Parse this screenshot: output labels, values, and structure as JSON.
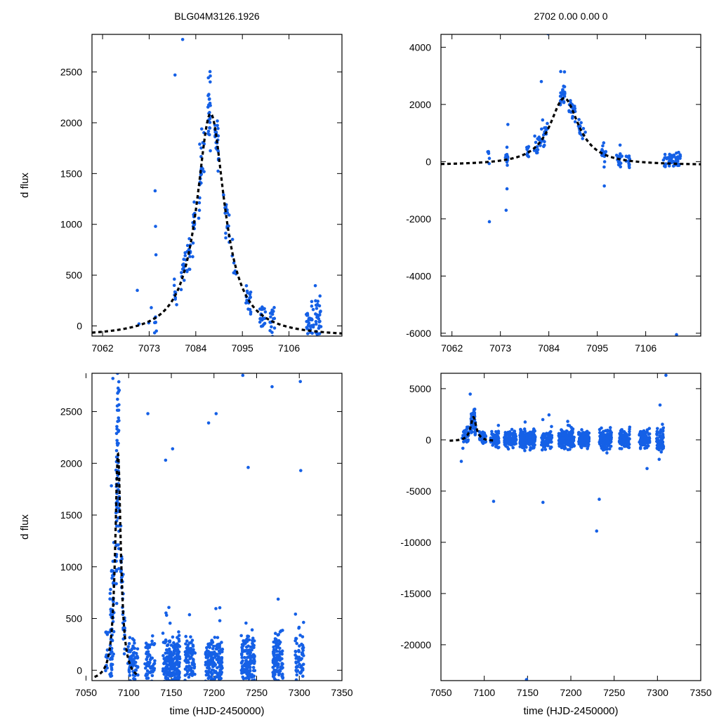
{
  "chart_data": [
    {
      "id": "p1",
      "type": "scatter",
      "title": "BLG04M3126.1926",
      "xlabel": "",
      "ylabel": "d flux",
      "xlim": [
        7059.5,
        7118.5
      ],
      "ylim": [
        -100,
        2870
      ],
      "xticks": [
        7062,
        7073,
        7084,
        7095,
        7106
      ],
      "yticks": [
        0,
        500,
        1000,
        1500,
        2000,
        2500
      ],
      "point_color": "#1560e6",
      "model_color": "#000000",
      "model": {
        "t0": 7087.5,
        "tE": 4.0,
        "amp": 2200,
        "base": -110
      },
      "series": [
        {
          "name": "observations",
          "seeds": [
            {
              "x": 7070.2,
              "y": 350
            },
            {
              "x": 7070.6,
              "y": 20
            },
            {
              "x": 7072.9,
              "y": 30
            },
            {
              "x": 7073.5,
              "y": 180
            },
            {
              "x": 7074.4,
              "y": 1330
            },
            {
              "x": 7074.5,
              "y": 980
            },
            {
              "x": 7074.6,
              "y": 700
            },
            {
              "x": 7074.7,
              "y": -50
            },
            {
              "x": 7079.1,
              "y": 2470
            },
            {
              "x": 7080.9,
              "y": 2820
            },
            {
              "x": 7084.7,
              "y": 1060
            }
          ],
          "clusters": [
            {
              "xc": 7074.4,
              "dx": 0.3,
              "n": 6,
              "jit": 140
            },
            {
              "xc": 7079.2,
              "dx": 0.3,
              "n": 8,
              "jit": 110
            },
            {
              "xc": 7081.3,
              "dx": 0.8,
              "n": 20,
              "jit": 150
            },
            {
              "xc": 7083.0,
              "dx": 0.8,
              "n": 22,
              "jit": 190
            },
            {
              "xc": 7085.4,
              "dx": 0.6,
              "n": 24,
              "jit": 230
            },
            {
              "xc": 7087.2,
              "dx": 0.4,
              "n": 26,
              "jit": 250
            },
            {
              "xc": 7089.0,
              "dx": 0.5,
              "n": 24,
              "jit": 210
            },
            {
              "xc": 7091.2,
              "dx": 0.7,
              "n": 16,
              "jit": 170
            },
            {
              "xc": 7093.0,
              "dx": 0.5,
              "n": 6,
              "jit": 140
            },
            {
              "xc": 7096.4,
              "dx": 0.6,
              "n": 18,
              "jit": 110
            },
            {
              "xc": 7099.8,
              "dx": 0.7,
              "n": 22,
              "jit": 120
            },
            {
              "xc": 7102.0,
              "dx": 0.6,
              "n": 18,
              "jit": 130
            },
            {
              "xc": 7111.0,
              "dx": 0.9,
              "n": 30,
              "jit": 160
            },
            {
              "xc": 7113.0,
              "dx": 0.8,
              "n": 34,
              "jit": 170
            }
          ]
        }
      ]
    },
    {
      "id": "p2",
      "type": "scatter",
      "title": "2702  0.00  0.00  0",
      "xlabel": "",
      "ylabel": "",
      "xlim": [
        7059.5,
        7118.5
      ],
      "ylim": [
        -6100,
        4450
      ],
      "xticks": [
        7062,
        7073,
        7084,
        7095,
        7106
      ],
      "yticks": [
        4000,
        2000,
        0,
        -2000,
        -4000,
        -6000
      ],
      "point_color": "#1560e6",
      "model_color": "#000000",
      "model": {
        "t0": 7087.5,
        "tE": 4.0,
        "amp": 2350,
        "base": -130
      },
      "series": [
        {
          "name": "observations",
          "seeds": [
            {
              "x": 7070.3,
              "y": 350
            },
            {
              "x": 7070.5,
              "y": -2100
            },
            {
              "x": 7074.3,
              "y": -1700
            },
            {
              "x": 7074.5,
              "y": -950
            },
            {
              "x": 7074.7,
              "y": 1300
            },
            {
              "x": 7082.3,
              "y": 2800
            },
            {
              "x": 7083.8,
              "y": 4470
            },
            {
              "x": 7086.7,
              "y": 3150
            },
            {
              "x": 7096.6,
              "y": -850
            },
            {
              "x": 7113.0,
              "y": -6050
            }
          ],
          "clusters": [
            {
              "xc": 7070.3,
              "dx": 0.3,
              "n": 4,
              "jit": 250
            },
            {
              "xc": 7074.5,
              "dx": 0.4,
              "n": 10,
              "jit": 350
            },
            {
              "xc": 7079.3,
              "dx": 0.4,
              "n": 10,
              "jit": 220
            },
            {
              "xc": 7081.4,
              "dx": 0.8,
              "n": 18,
              "jit": 260
            },
            {
              "xc": 7083.0,
              "dx": 0.7,
              "n": 18,
              "jit": 300
            },
            {
              "xc": 7087.2,
              "dx": 0.6,
              "n": 24,
              "jit": 330
            },
            {
              "xc": 7089.3,
              "dx": 0.7,
              "n": 20,
              "jit": 300
            },
            {
              "xc": 7091.5,
              "dx": 0.8,
              "n": 14,
              "jit": 260
            },
            {
              "xc": 7096.5,
              "dx": 0.5,
              "n": 18,
              "jit": 260
            },
            {
              "xc": 7100.0,
              "dx": 0.6,
              "n": 16,
              "jit": 220
            },
            {
              "xc": 7102.0,
              "dx": 0.5,
              "n": 14,
              "jit": 220
            },
            {
              "xc": 7111.0,
              "dx": 1.0,
              "n": 28,
              "jit": 200
            },
            {
              "xc": 7113.0,
              "dx": 0.9,
              "n": 30,
              "jit": 210
            }
          ]
        }
      ]
    },
    {
      "id": "p3",
      "type": "scatter",
      "title": "",
      "xlabel": "time (HJD-2450000)",
      "ylabel": "d flux",
      "xlim": [
        7057,
        7350
      ],
      "ylim": [
        -100,
        2870
      ],
      "xticks": [
        7050,
        7100,
        7150,
        7200,
        7250,
        7300,
        7350
      ],
      "yticks": [
        0,
        500,
        1000,
        1500,
        2000,
        2500
      ],
      "point_color": "#1560e6",
      "model_color": "#000000",
      "model": {
        "t0": 7087.5,
        "tE": 4.0,
        "amp": 2200,
        "base": -110
      },
      "series": [
        {
          "name": "observations",
          "seeds": [
            {
              "x": 7081.5,
              "y": 2820
            },
            {
              "x": 7122.5,
              "y": 2480
            },
            {
              "x": 7202.5,
              "y": 2480
            },
            {
              "x": 7233.8,
              "y": 2850
            },
            {
              "x": 7268.1,
              "y": 2740
            },
            {
              "x": 7301.2,
              "y": 2790
            },
            {
              "x": 7151.5,
              "y": 2140
            },
            {
              "x": 7143.3,
              "y": 2030
            },
            {
              "x": 7240.1,
              "y": 1960
            },
            {
              "x": 7301.7,
              "y": 1930
            },
            {
              "x": 7193.7,
              "y": 2390
            }
          ],
          "clusters": [
            {
              "xc": 7074.2,
              "dx": 1.5,
              "n": 12,
              "jit": 200
            },
            {
              "xc": 7080.5,
              "dx": 2.5,
              "n": 60,
              "jit": 500
            },
            {
              "xc": 7087.0,
              "dx": 2.0,
              "n": 80,
              "jit": 800
            },
            {
              "xc": 7093.0,
              "dx": 2.5,
              "n": 35,
              "jit": 300
            },
            {
              "xc": 7105.0,
              "dx": 6.0,
              "n": 70,
              "jit": 150
            },
            {
              "xc": 7125.0,
              "dx": 6.0,
              "n": 60,
              "jit": 170
            },
            {
              "xc": 7150.0,
              "dx": 10.0,
              "n": 210,
              "jit": 230
            },
            {
              "xc": 7172.0,
              "dx": 6.0,
              "n": 90,
              "jit": 180
            },
            {
              "xc": 7200.0,
              "dx": 10.0,
              "n": 190,
              "jit": 240
            },
            {
              "xc": 7240.0,
              "dx": 8.0,
              "n": 150,
              "jit": 230
            },
            {
              "xc": 7275.0,
              "dx": 6.0,
              "n": 110,
              "jit": 200
            },
            {
              "xc": 7300.0,
              "dx": 5.0,
              "n": 60,
              "jit": 220
            }
          ]
        }
      ]
    },
    {
      "id": "p4",
      "type": "scatter",
      "title": "",
      "xlabel": "time (HJD-2450000)",
      "ylabel": "",
      "xlim": [
        7050,
        7350
      ],
      "ylim": [
        -23500,
        6500
      ],
      "xticks": [
        7050,
        7100,
        7150,
        7200,
        7250,
        7300,
        7350
      ],
      "yticks": [
        5000,
        0,
        -5000,
        -10000,
        -15000,
        -20000
      ],
      "point_color": "#1560e6",
      "model_color": "#000000",
      "model": {
        "t0": 7087.5,
        "tE": 4.0,
        "amp": 2350,
        "base": -130
      },
      "series": [
        {
          "name": "observations",
          "seeds": [
            {
              "x": 7110.8,
              "y": -6000
            },
            {
              "x": 7167.8,
              "y": -6100
            },
            {
              "x": 7232.8,
              "y": -5800
            },
            {
              "x": 7229.8,
              "y": -8900
            },
            {
              "x": 7148.8,
              "y": -23400
            },
            {
              "x": 7309.8,
              "y": 6300
            },
            {
              "x": 7083.8,
              "y": 4470
            },
            {
              "x": 7073.5,
              "y": -2100
            },
            {
              "x": 7302.0,
              "y": -1900
            },
            {
              "x": 7288.0,
              "y": -2800
            },
            {
              "x": 7303.0,
              "y": 3400
            }
          ],
          "clusters": [
            {
              "xc": 7078.0,
              "dx": 4.0,
              "n": 40,
              "jit": 700
            },
            {
              "xc": 7087.0,
              "dx": 3.0,
              "n": 60,
              "jit": 900
            },
            {
              "xc": 7098.0,
              "dx": 4.0,
              "n": 40,
              "jit": 500
            },
            {
              "xc": 7112.0,
              "dx": 5.0,
              "n": 70,
              "jit": 650
            },
            {
              "xc": 7130.0,
              "dx": 7.0,
              "n": 100,
              "jit": 700
            },
            {
              "xc": 7150.0,
              "dx": 9.0,
              "n": 200,
              "jit": 700
            },
            {
              "xc": 7172.0,
              "dx": 6.0,
              "n": 90,
              "jit": 700
            },
            {
              "xc": 7195.0,
              "dx": 9.0,
              "n": 180,
              "jit": 750
            },
            {
              "xc": 7215.0,
              "dx": 6.0,
              "n": 100,
              "jit": 700
            },
            {
              "xc": 7240.0,
              "dx": 7.0,
              "n": 130,
              "jit": 800
            },
            {
              "xc": 7262.0,
              "dx": 6.0,
              "n": 90,
              "jit": 700
            },
            {
              "xc": 7285.0,
              "dx": 6.0,
              "n": 90,
              "jit": 750
            },
            {
              "xc": 7303.0,
              "dx": 4.0,
              "n": 70,
              "jit": 1000
            }
          ]
        }
      ]
    }
  ]
}
